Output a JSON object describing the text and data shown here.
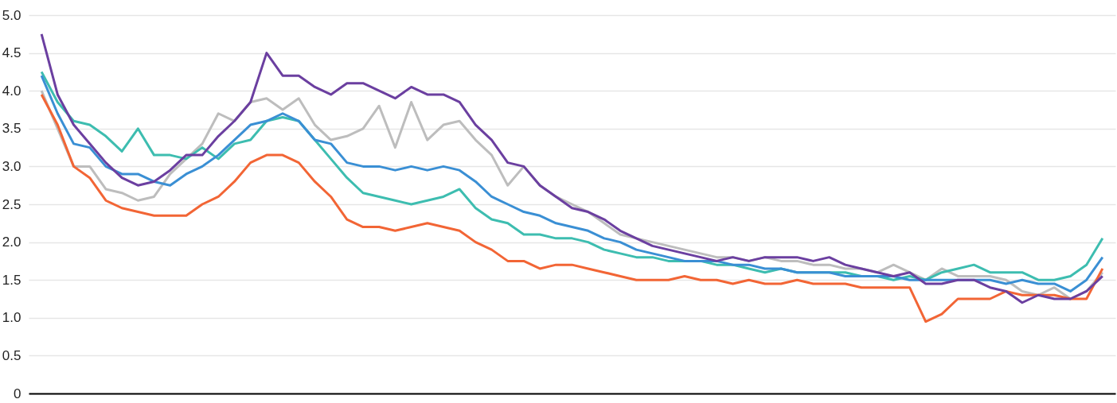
{
  "chart_data": {
    "type": "line",
    "categories": [
      null,
      null,
      null,
      null,
      null,
      null,
      null,
      null,
      null,
      null,
      null,
      null,
      null,
      null,
      null,
      null,
      null,
      null,
      null,
      null,
      null,
      null,
      null,
      null,
      null,
      null,
      null,
      null,
      null,
      null,
      null,
      null,
      null,
      null,
      null,
      null,
      null,
      null,
      null,
      null,
      null,
      null,
      null,
      null,
      null,
      null,
      null,
      null,
      null,
      null,
      null,
      null,
      null,
      null,
      null,
      null,
      null,
      null,
      null,
      null,
      null,
      null,
      null,
      null,
      null,
      null,
      null
    ],
    "series": [
      {
        "color": "#bdbdbd",
        "values": [
          4.0,
          3.5,
          3.0,
          3.0,
          2.7,
          2.65,
          2.55,
          2.6,
          2.9,
          3.1,
          3.3,
          3.7,
          3.6,
          3.85,
          3.9,
          3.75,
          3.9,
          3.55,
          3.35,
          3.4,
          3.5,
          3.8,
          3.25,
          3.85,
          3.35,
          3.55,
          3.6,
          3.35,
          3.15,
          2.75,
          3.0,
          2.75,
          2.6,
          2.5,
          2.4,
          2.25,
          2.1,
          2.05,
          2.0,
          1.95,
          1.9,
          1.85,
          1.8,
          1.8,
          1.75,
          1.8,
          1.75,
          1.75,
          1.7,
          1.7,
          1.65,
          1.65,
          1.6,
          1.7,
          1.6,
          1.5,
          1.65,
          1.55,
          1.55,
          1.55,
          1.5,
          1.35,
          1.3,
          1.4,
          1.25,
          1.35,
          1.6
        ]
      },
      {
        "color": "#f26535",
        "values": [
          3.95,
          3.55,
          3.0,
          2.85,
          2.55,
          2.45,
          2.4,
          2.35,
          2.35,
          2.35,
          2.5,
          2.6,
          2.8,
          3.05,
          3.15,
          3.15,
          3.05,
          2.8,
          2.6,
          2.3,
          2.2,
          2.2,
          2.15,
          2.2,
          2.25,
          2.2,
          2.15,
          2.0,
          1.9,
          1.75,
          1.75,
          1.65,
          1.7,
          1.7,
          1.65,
          1.6,
          1.55,
          1.5,
          1.5,
          1.5,
          1.55,
          1.5,
          1.5,
          1.45,
          1.5,
          1.45,
          1.45,
          1.5,
          1.45,
          1.45,
          1.45,
          1.4,
          1.4,
          1.4,
          1.4,
          0.95,
          1.05,
          1.25,
          1.25,
          1.25,
          1.35,
          1.3,
          1.3,
          1.3,
          1.25,
          1.25,
          1.65
        ]
      },
      {
        "color": "#3dbdb0",
        "values": [
          4.25,
          3.85,
          3.6,
          3.55,
          3.4,
          3.2,
          3.5,
          3.15,
          3.15,
          3.1,
          3.25,
          3.1,
          3.3,
          3.35,
          3.6,
          3.65,
          3.6,
          3.35,
          3.1,
          2.85,
          2.65,
          2.6,
          2.55,
          2.5,
          2.55,
          2.6,
          2.7,
          2.45,
          2.3,
          2.25,
          2.1,
          2.1,
          2.05,
          2.05,
          2.0,
          1.9,
          1.85,
          1.8,
          1.8,
          1.75,
          1.75,
          1.75,
          1.7,
          1.7,
          1.65,
          1.6,
          1.65,
          1.6,
          1.6,
          1.6,
          1.6,
          1.55,
          1.55,
          1.5,
          1.55,
          1.5,
          1.6,
          1.65,
          1.7,
          1.6,
          1.6,
          1.6,
          1.5,
          1.5,
          1.55,
          1.7,
          2.05
        ]
      },
      {
        "color": "#3a8fd4",
        "values": [
          4.2,
          3.7,
          3.3,
          3.25,
          3.0,
          2.9,
          2.9,
          2.8,
          2.75,
          2.9,
          3.0,
          3.15,
          3.35,
          3.55,
          3.6,
          3.7,
          3.6,
          3.35,
          3.3,
          3.05,
          3.0,
          3.0,
          2.95,
          3.0,
          2.95,
          3.0,
          2.95,
          2.8,
          2.6,
          2.5,
          2.4,
          2.35,
          2.25,
          2.2,
          2.15,
          2.05,
          2.0,
          1.9,
          1.85,
          1.8,
          1.75,
          1.75,
          1.75,
          1.7,
          1.7,
          1.65,
          1.65,
          1.6,
          1.6,
          1.6,
          1.55,
          1.55,
          1.55,
          1.55,
          1.5,
          1.5,
          1.5,
          1.5,
          1.5,
          1.5,
          1.45,
          1.5,
          1.45,
          1.45,
          1.35,
          1.5,
          1.8
        ]
      },
      {
        "color": "#6b3fa0",
        "values": [
          4.75,
          3.95,
          3.55,
          3.3,
          3.05,
          2.85,
          2.75,
          2.8,
          2.95,
          3.15,
          3.15,
          3.4,
          3.6,
          3.85,
          4.5,
          4.2,
          4.2,
          4.05,
          3.95,
          4.1,
          4.1,
          4.0,
          3.9,
          4.05,
          3.95,
          3.95,
          3.85,
          3.55,
          3.35,
          3.05,
          3.0,
          2.75,
          2.6,
          2.45,
          2.4,
          2.3,
          2.15,
          2.05,
          1.95,
          1.9,
          1.85,
          1.8,
          1.75,
          1.8,
          1.75,
          1.8,
          1.8,
          1.8,
          1.75,
          1.8,
          1.7,
          1.65,
          1.6,
          1.55,
          1.6,
          1.45,
          1.45,
          1.5,
          1.5,
          1.4,
          1.35,
          1.2,
          1.3,
          1.25,
          1.25,
          1.35,
          1.55
        ]
      }
    ],
    "ylim": [
      0,
      5
    ],
    "yticks": [
      0,
      {
        "value": 0.5,
        "label": "0.5"
      },
      {
        "value": 1,
        "label": "1.0"
      },
      1.5,
      {
        "value": 2,
        "label": "2.0"
      },
      2.5,
      {
        "value": 3,
        "label": "3.0"
      },
      3.5,
      {
        "value": 4,
        "label": "4.0"
      },
      4.5,
      {
        "value": 5,
        "label": "5.0"
      }
    ],
    "grid": "y",
    "marker": "none",
    "line_style": "solid",
    "tick_labels": "y"
  }
}
